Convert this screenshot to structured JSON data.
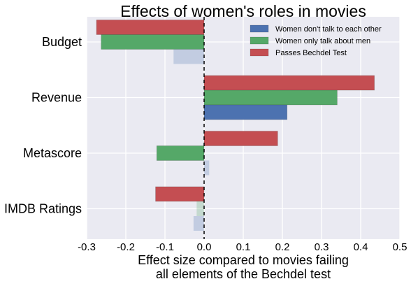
{
  "chart_data": {
    "type": "bar",
    "orientation": "horizontal",
    "title": "Effects of women's roles in movies",
    "xlabel": [
      "Effect size compared to movies failing",
      "all elements of the Bechdel test"
    ],
    "xlim": [
      -0.3,
      0.5
    ],
    "xticks": [
      "-0.3",
      "-0.2",
      "-0.1",
      "0.0",
      "0.1",
      "0.2",
      "0.3",
      "0.4",
      "0.5"
    ],
    "categories": [
      "Budget",
      "Revenue",
      "Metascore",
      "IMDB Ratings"
    ],
    "reference_line": 0.0,
    "grid": true,
    "legend_position": "top-right",
    "series": [
      {
        "name": "Women don't talk to each other",
        "color": "#4c72b0",
        "values": [
          -0.078,
          0.212,
          0.013,
          -0.027
        ],
        "faded": [
          true,
          false,
          true,
          true
        ]
      },
      {
        "name": "Women only talk about men",
        "color": "#55a868",
        "values": [
          -0.263,
          0.34,
          -0.121,
          -0.019
        ],
        "faded": [
          false,
          false,
          false,
          true
        ]
      },
      {
        "name": "Passes Bechdel Test",
        "color": "#c44e52",
        "values": [
          -0.275,
          0.435,
          0.188,
          -0.124
        ],
        "faded": [
          false,
          false,
          false,
          false
        ]
      }
    ]
  }
}
